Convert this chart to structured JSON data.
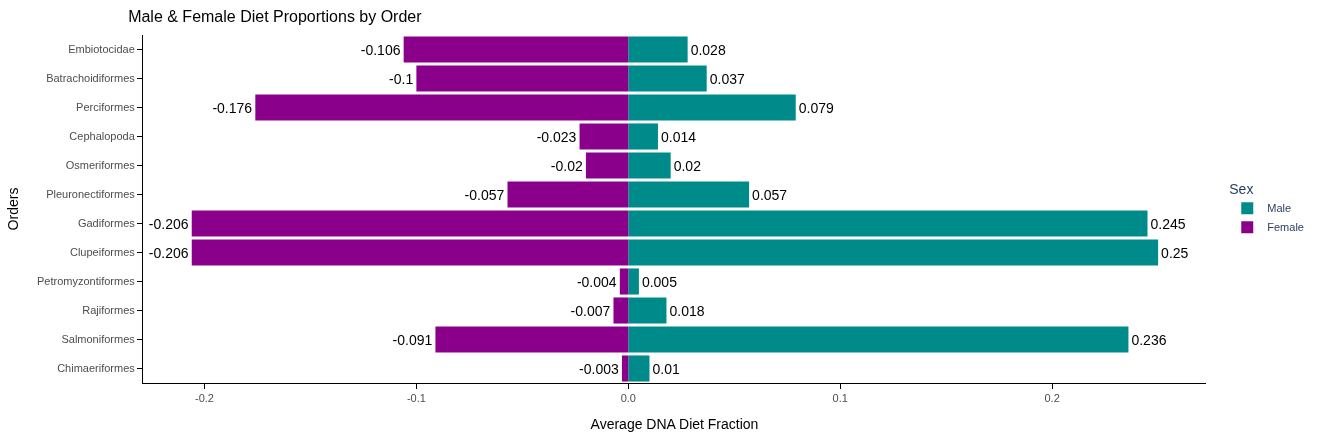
{
  "chart_data": {
    "type": "bar",
    "orientation": "horizontal",
    "stacked": true,
    "title": "Male & Female Diet Proportions by Order",
    "xlabel": "Average DNA Diet Fraction",
    "ylabel": "Orders",
    "legend_title": "Sex",
    "legend": "right",
    "data_labels": true,
    "categories": [
      "Embiotocidae",
      "Batrachoidiformes",
      "Perciformes",
      "Cephalopoda",
      "Osmeriformes",
      "Pleuronectiformes",
      "Gadiformes",
      "Clupeiformes",
      "Petromyzontiformes",
      "Rajiformes",
      "Salmoniformes",
      "Chimaeriformes"
    ],
    "xlim": [
      -0.229,
      0.2726
    ],
    "xticks": [
      {
        "value": -0.2,
        "label": "-0.2"
      },
      {
        "value": -0.1,
        "label": "-0.1"
      },
      {
        "value": 0,
        "label": "0.0"
      },
      {
        "value": 0.1,
        "label": "0.1"
      },
      {
        "value": 0.2,
        "label": "0.2"
      }
    ],
    "series": [
      {
        "name": "Male",
        "color": "#008b8b",
        "values": [
          0.028,
          0.037,
          0.079,
          0.014,
          0.02,
          0.057,
          0.245,
          0.25,
          0.005,
          0.018,
          0.236,
          0.01
        ]
      },
      {
        "name": "Female",
        "color": "#8b008b",
        "values": [
          -0.106,
          -0.1,
          -0.176,
          -0.023,
          -0.02,
          -0.057,
          -0.206,
          -0.206,
          -0.004,
          -0.007,
          -0.091,
          -0.003
        ]
      }
    ]
  }
}
